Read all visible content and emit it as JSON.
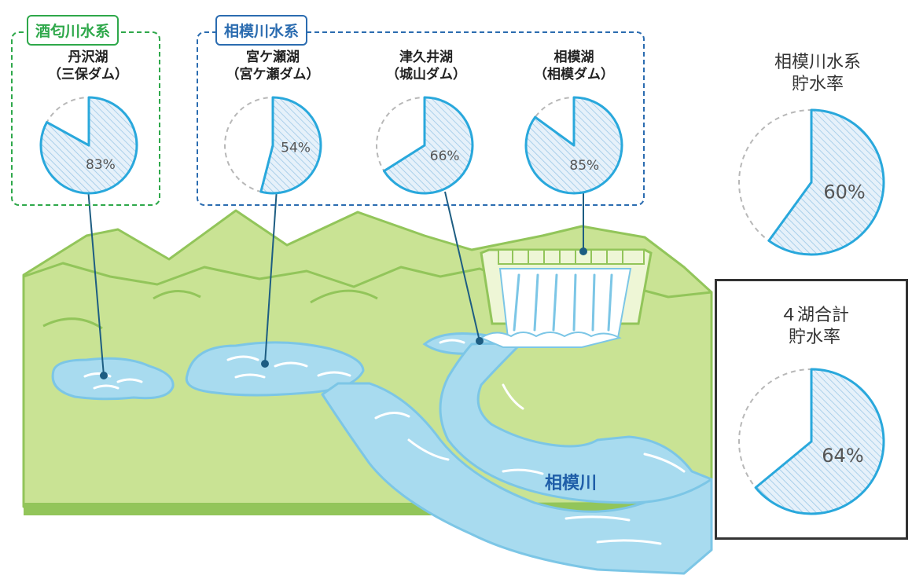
{
  "colors": {
    "sakawa_accent": "#2ea84a",
    "sagami_accent": "#2b6cb0",
    "pie_outline": "#29a8dc",
    "pie_fill": "#e6f1fa",
    "pie_hatch": "#9cc8e6",
    "pie_empty_outline": "#b8b8b8",
    "mountain": "#c9e394",
    "mountain_outline": "#92c55a",
    "water": "#a8dbef",
    "water_outline": "#7cc6e6",
    "river_label": "#1f5ea8",
    "connector": "#1d5d82"
  },
  "groups": {
    "sakawa": {
      "label": "酒匂川水系"
    },
    "sagami": {
      "label": "相模川水系"
    }
  },
  "lakes": [
    {
      "name": "丹沢湖",
      "dam": "（三保ダム）",
      "percent_label": "83%",
      "rate": 83
    },
    {
      "name": "宮ケ瀬湖",
      "dam": "（宮ケ瀬ダム）",
      "percent_label": "54%",
      "rate": 54
    },
    {
      "name": "津久井湖",
      "dam": "（城山ダム）",
      "percent_label": "66%",
      "rate": 66
    },
    {
      "name": "相模湖",
      "dam": "（相模ダム）",
      "percent_label": "85%",
      "rate": 85
    }
  ],
  "totals": {
    "sagami": {
      "line1": "相模川水系",
      "line2": "貯水率",
      "percent_label": "60%",
      "rate": 60
    },
    "all": {
      "line1": "４湖合計",
      "line2": "貯水率",
      "percent_label": "64%",
      "rate": 64
    }
  },
  "river_name": "相模川"
}
